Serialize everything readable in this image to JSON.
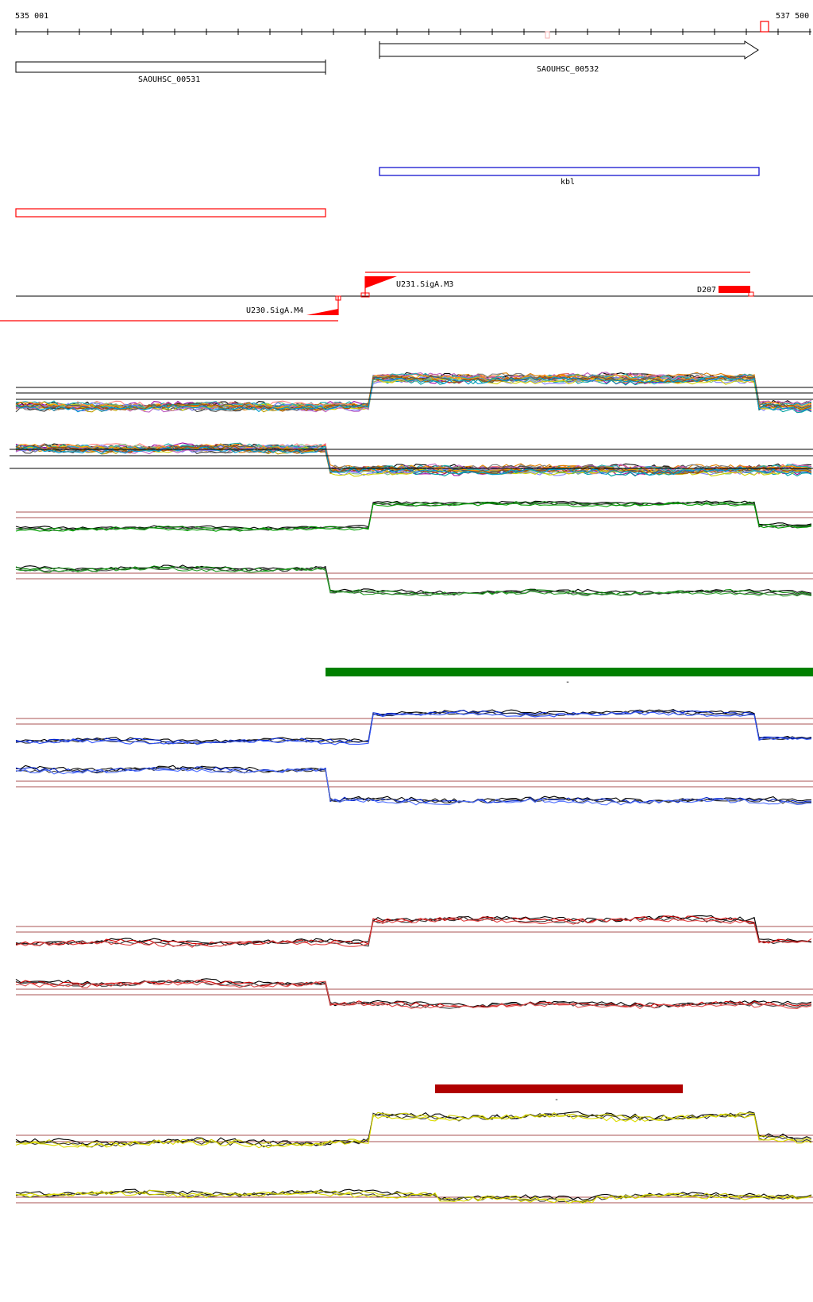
{
  "ruler": {
    "start_label": "535 001",
    "end_label": "537 500"
  },
  "genes": [
    {
      "label": "SAOUHSC_00531",
      "strand": "none"
    },
    {
      "label": "SAOUHSC_00532",
      "strand": "forward"
    }
  ],
  "annotation_blue": {
    "label": "kbl",
    "color": "#0000cc"
  },
  "annotation_red": {
    "label": "",
    "color": "#ff0000"
  },
  "promoters": [
    {
      "label": "U231.SigA.M3"
    },
    {
      "label": "U230.SigA.M4"
    },
    {
      "label": "D207"
    }
  ],
  "colors": {
    "feature_red": "#ff0000",
    "threshold_line": "#8b1a1a",
    "green": "#008000",
    "blue": "#0022cc",
    "red": "#cc0000",
    "yellow": "#cccc00",
    "green_bar": "#008000",
    "darkred_bar": "#b00000"
  },
  "bars": [
    {
      "label": "-",
      "color": "#008000"
    },
    {
      "label": "-",
      "color": "#b00000"
    }
  ]
}
